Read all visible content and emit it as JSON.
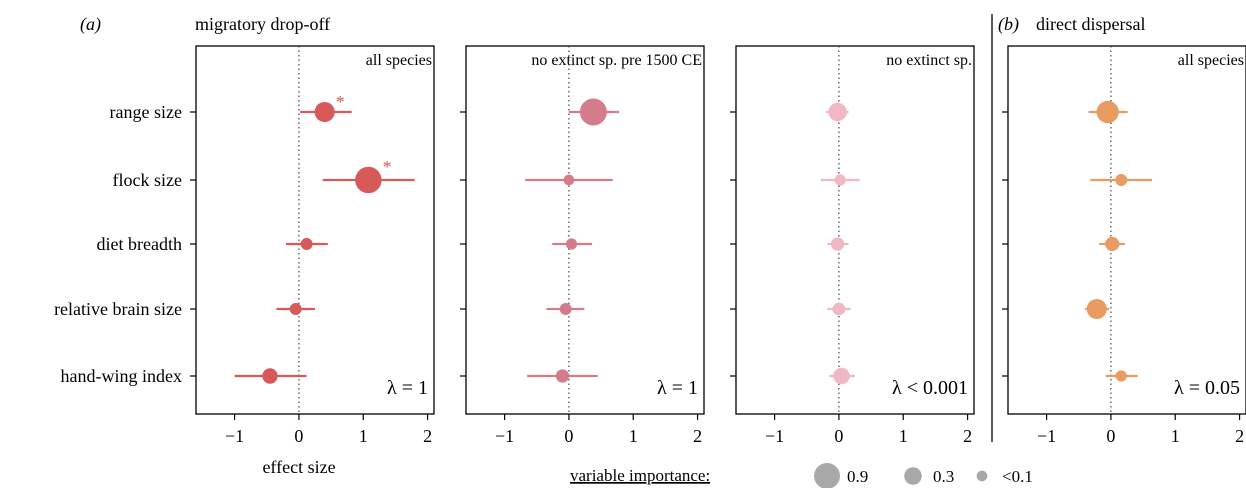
{
  "figure": {
    "panel_a_label": "(a)",
    "panel_a_title": "migratory drop-off",
    "panel_b_label": "(b)",
    "panel_b_title": "direct dispersal",
    "x_axis_label": "effect size",
    "legend_title": "variable importance:",
    "legend_items": [
      {
        "value": 0.9,
        "label": "0.9"
      },
      {
        "value": 0.3,
        "label": "0.3"
      },
      {
        "value": 0.05,
        "label": "<0.1"
      }
    ],
    "legend_color": "#a8a8a8",
    "significance_marker": "*"
  },
  "chart_data": {
    "type": "scatter",
    "categories": [
      "range size",
      "flock size",
      "diet breadth",
      "relative brain size",
      "hand-wing index"
    ],
    "xlim": [
      -1.6,
      2.1
    ],
    "xticks": [
      -1,
      0,
      1,
      2
    ],
    "xtick_labels": [
      "−1",
      "0",
      "1",
      "2"
    ],
    "panels": [
      {
        "subtitle": "all species",
        "color": "#d65a5a",
        "lambda": "λ = 1",
        "points": [
          {
            "category": "range size",
            "estimate": 0.4,
            "lower": 0.02,
            "upper": 0.82,
            "importance": 0.45,
            "significant": true
          },
          {
            "category": "flock size",
            "estimate": 1.08,
            "lower": 0.37,
            "upper": 1.8,
            "importance": 0.95,
            "significant": true
          },
          {
            "category": "diet breadth",
            "estimate": 0.12,
            "lower": -0.2,
            "upper": 0.45,
            "importance": 0.08,
            "significant": false
          },
          {
            "category": "relative brain size",
            "estimate": -0.05,
            "lower": -0.35,
            "upper": 0.25,
            "importance": 0.08,
            "significant": false
          },
          {
            "category": "hand-wing index",
            "estimate": -0.45,
            "lower": -1.0,
            "upper": 0.12,
            "importance": 0.2,
            "significant": false
          }
        ]
      },
      {
        "subtitle": "no extinct sp. pre 1500 CE",
        "color": "#d47c8a",
        "lambda": "λ = 1",
        "points": [
          {
            "category": "range size",
            "estimate": 0.38,
            "lower": 0.0,
            "upper": 0.78,
            "importance": 1.0,
            "significant": false
          },
          {
            "category": "flock size",
            "estimate": 0.0,
            "lower": -0.68,
            "upper": 0.68,
            "importance": 0.05,
            "significant": false
          },
          {
            "category": "diet breadth",
            "estimate": 0.04,
            "lower": -0.26,
            "upper": 0.36,
            "importance": 0.06,
            "significant": false
          },
          {
            "category": "relative brain size",
            "estimate": -0.05,
            "lower": -0.35,
            "upper": 0.24,
            "importance": 0.08,
            "significant": false
          },
          {
            "category": "hand-wing index",
            "estimate": -0.1,
            "lower": -0.65,
            "upper": 0.45,
            "importance": 0.12,
            "significant": false
          }
        ]
      },
      {
        "subtitle": "no extinct sp.",
        "color": "#f0b8c2",
        "lambda": "λ < 0.001",
        "points": [
          {
            "category": "range size",
            "estimate": -0.02,
            "lower": -0.2,
            "upper": 0.15,
            "importance": 0.35,
            "significant": false
          },
          {
            "category": "flock size",
            "estimate": 0.02,
            "lower": -0.28,
            "upper": 0.32,
            "importance": 0.06,
            "significant": false
          },
          {
            "category": "diet breadth",
            "estimate": -0.02,
            "lower": -0.18,
            "upper": 0.15,
            "importance": 0.12,
            "significant": false
          },
          {
            "category": "relative brain size",
            "estimate": 0.0,
            "lower": -0.18,
            "upper": 0.18,
            "importance": 0.1,
            "significant": false
          },
          {
            "category": "hand-wing index",
            "estimate": 0.04,
            "lower": -0.15,
            "upper": 0.25,
            "importance": 0.25,
            "significant": false
          }
        ]
      },
      {
        "subtitle": "all species",
        "color": "#e89b63",
        "lambda": "λ = 0.05",
        "points": [
          {
            "category": "range size",
            "estimate": -0.05,
            "lower": -0.35,
            "upper": 0.26,
            "importance": 0.6,
            "significant": false
          },
          {
            "category": "flock size",
            "estimate": 0.16,
            "lower": -0.32,
            "upper": 0.64,
            "importance": 0.08,
            "significant": false
          },
          {
            "category": "diet breadth",
            "estimate": 0.02,
            "lower": -0.18,
            "upper": 0.22,
            "importance": 0.15,
            "significant": false
          },
          {
            "category": "relative brain size",
            "estimate": -0.22,
            "lower": -0.4,
            "upper": -0.03,
            "importance": 0.45,
            "significant": false
          },
          {
            "category": "hand-wing index",
            "estimate": 0.16,
            "lower": -0.08,
            "upper": 0.42,
            "importance": 0.06,
            "significant": false
          }
        ]
      }
    ]
  }
}
